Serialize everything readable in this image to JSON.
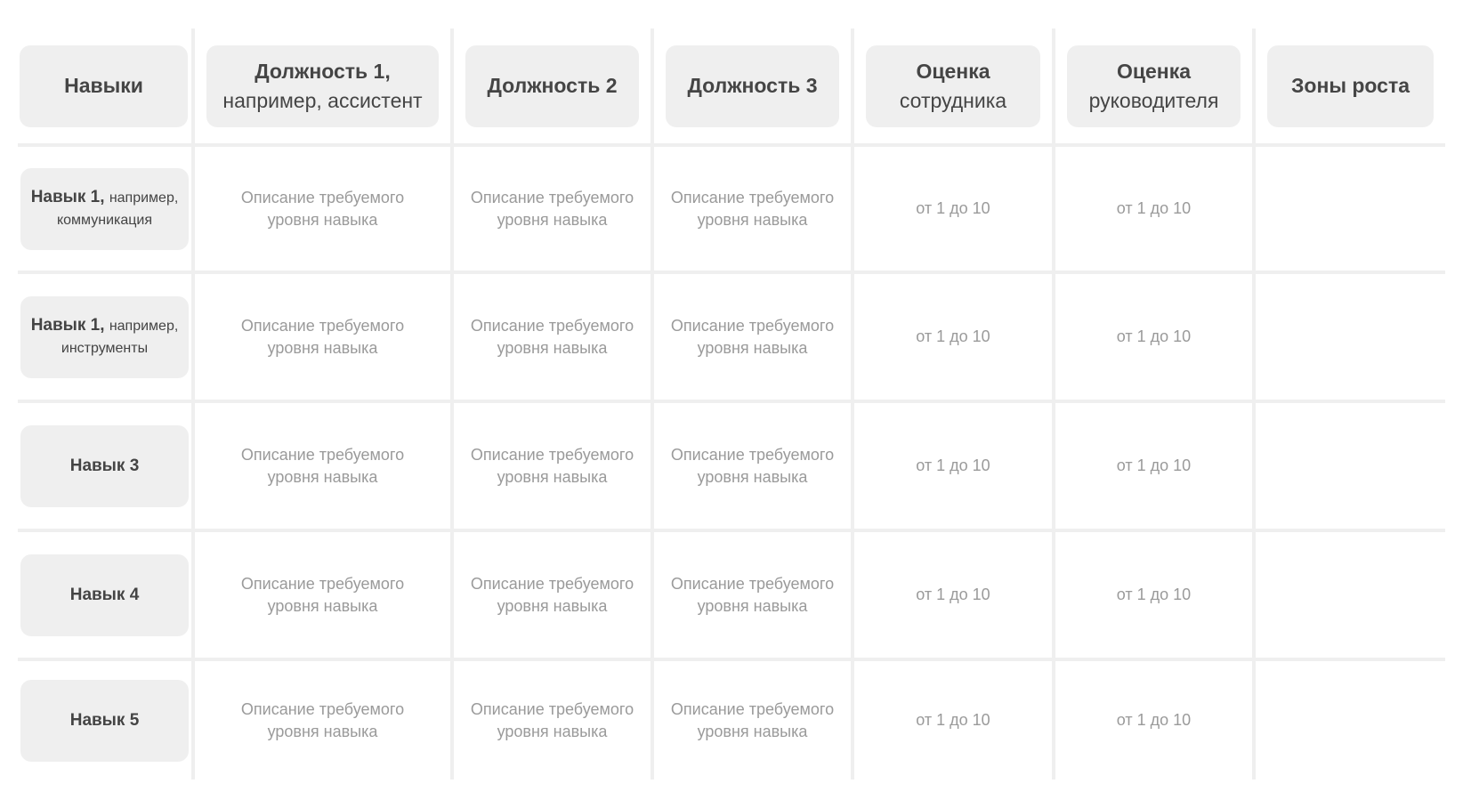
{
  "headers": [
    {
      "main": "Навыки",
      "sub": ""
    },
    {
      "main": "Должность 1,",
      "sub": "например, ассистент"
    },
    {
      "main": "Должность 2",
      "sub": ""
    },
    {
      "main": "Должность 3",
      "sub": ""
    },
    {
      "main": "Оценка",
      "sub": "сотрудника"
    },
    {
      "main": "Оценка",
      "sub": "руководителя"
    },
    {
      "main": "Зоны роста",
      "sub": ""
    }
  ],
  "rows": [
    {
      "skill": "Навык 1,",
      "skill_note": "например,",
      "skill_note2": "коммуникация",
      "desc": [
        "Описание требуемого уровня навыка",
        "Описание требуемого уровня навыка",
        "Описание требуемого уровня навыка"
      ],
      "employee_score": "от 1 до 10",
      "manager_score": "от 1 до 10",
      "growth": ""
    },
    {
      "skill": "Навык 1,",
      "skill_note": "например,",
      "skill_note2": "инструменты",
      "desc": [
        "Описание требуемого уровня навыка",
        "Описание требуемого уровня навыка",
        "Описание требуемого уровня навыка"
      ],
      "employee_score": "от 1 до 10",
      "manager_score": "от 1 до 10",
      "growth": ""
    },
    {
      "skill": "Навык 3",
      "skill_note": "",
      "skill_note2": "",
      "desc": [
        "Описание требуемого уровня навыка",
        "Описание требуемого уровня навыка",
        "Описание требуемого уровня навыка"
      ],
      "employee_score": "от 1 до 10",
      "manager_score": "от 1 до 10",
      "growth": ""
    },
    {
      "skill": "Навык 4",
      "skill_note": "",
      "skill_note2": "",
      "desc": [
        "Описание требуемого уровня навыка",
        "Описание требуемого уровня навыка",
        "Описание требуемого уровня навыка"
      ],
      "employee_score": "от 1 до 10",
      "manager_score": "от 1 до 10",
      "growth": ""
    },
    {
      "skill": "Навык 5",
      "skill_note": "",
      "skill_note2": "",
      "desc": [
        "Описание требуемого уровня навыка",
        "Описание требуемого уровня навыка",
        "Описание требуемого уровня навыка"
      ],
      "employee_score": "от 1 до 10",
      "manager_score": "от 1 до 10",
      "growth": ""
    }
  ],
  "colors": {
    "box": "#efefef",
    "header_text": "#454545",
    "muted_text": "#9a9a9a"
  }
}
